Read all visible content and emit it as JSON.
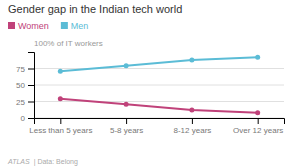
{
  "chart_data": {
    "type": "line",
    "title": "Gender gap in the Indian tech world",
    "ylabel": "100% of IT workers",
    "categories": [
      "Less than 5 years",
      "5-8 years",
      "8-12 years",
      "Over 12 years"
    ],
    "series": [
      {
        "name": "Men",
        "color": "#5bbcd6",
        "values": [
          71,
          79,
          88,
          92
        ]
      },
      {
        "name": "Women",
        "color": "#c0427a",
        "values": [
          29,
          21,
          12,
          8
        ]
      }
    ],
    "ylim": [
      0,
      100
    ],
    "yticks": [
      0,
      25,
      50,
      75
    ],
    "grid": true,
    "legend": "top left",
    "marker": "circle",
    "annotations": [
      "ATLAS",
      "| Data: Belong"
    ]
  }
}
